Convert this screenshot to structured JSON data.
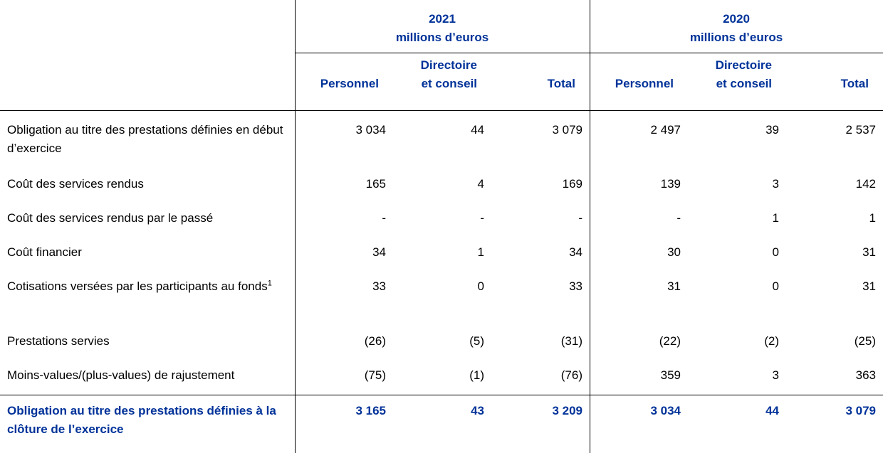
{
  "table": {
    "groups": [
      {
        "year": "2021",
        "unit": "millions d’euros"
      },
      {
        "year": "2020",
        "unit": "millions d’euros"
      }
    ],
    "columns": [
      [
        "Personnel"
      ],
      [
        "Directoire",
        "et conseil"
      ],
      [
        "Total"
      ],
      [
        "Personnel"
      ],
      [
        "Directoire",
        "et conseil"
      ],
      [
        "Total"
      ]
    ],
    "rows": [
      {
        "label": "Obligation au titre des prestations définies en début d’exercice",
        "values": [
          "3 034",
          "44",
          "3 079",
          "2 497",
          "39",
          "2 537"
        ]
      },
      {
        "label": "Coût des services rendus",
        "values": [
          "165",
          "4",
          "169",
          "139",
          "3",
          "142"
        ]
      },
      {
        "label": "Coût des services rendus par le passé",
        "values": [
          "-",
          "-",
          "-",
          "-",
          "1",
          "1"
        ]
      },
      {
        "label": "Coût financier",
        "values": [
          "34",
          "1",
          "34",
          "30",
          "0",
          "31"
        ]
      },
      {
        "label": "Cotisations versées par les participants au fonds",
        "footnote": "1",
        "values": [
          "33",
          "0",
          "33",
          "31",
          "0",
          "31"
        ]
      },
      {
        "label": "Prestations servies",
        "values": [
          "(26)",
          "(5)",
          "(31)",
          "(22)",
          "(2)",
          "(25)"
        ]
      },
      {
        "label": "Moins-values/(plus-values) de rajustement",
        "values": [
          "(75)",
          "(1)",
          "(76)",
          "359",
          "3",
          "363"
        ]
      }
    ],
    "total": {
      "label": "Obligation au titre des prestations définies à la clôture de l’exercice",
      "values": [
        "3 165",
        "43",
        "3 209",
        "3 034",
        "44",
        "3 079"
      ]
    }
  }
}
